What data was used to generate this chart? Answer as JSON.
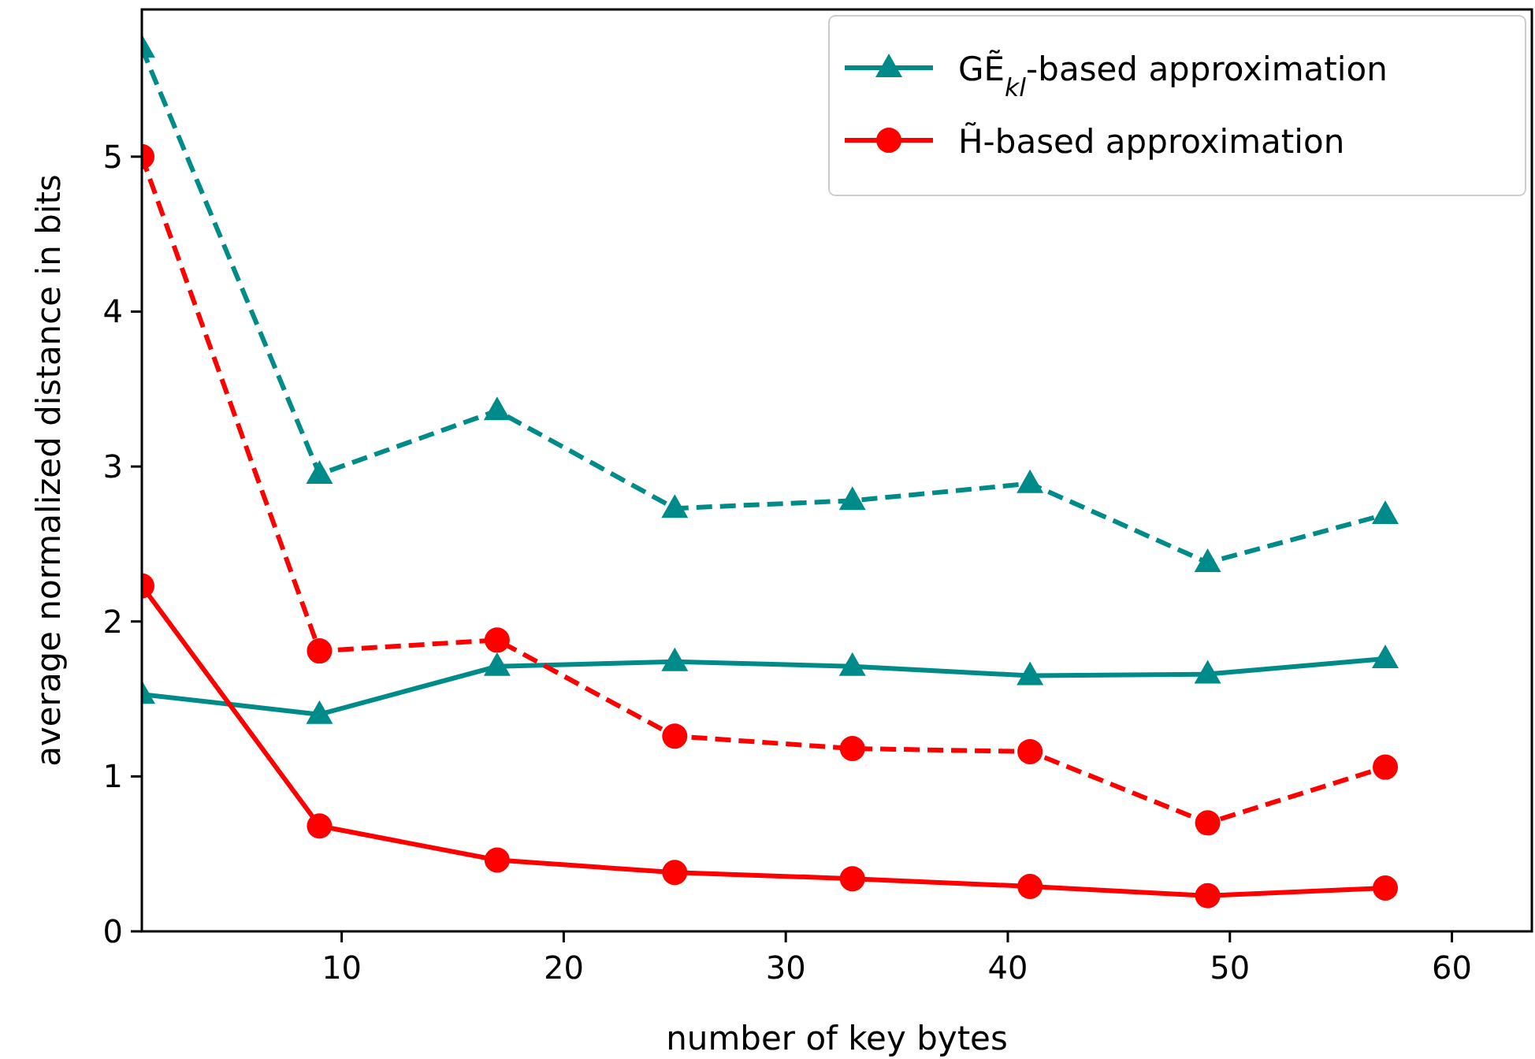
{
  "chart_data": {
    "type": "line",
    "xlabel": "number of key bytes",
    "ylabel": "average normalized distance in bits",
    "xlim": [
      1,
      63.6
    ],
    "xticks": [
      10,
      20,
      30,
      40,
      50,
      60
    ],
    "ylim": [
      0,
      5.95
    ],
    "yticks": [
      0,
      1,
      2,
      3,
      4,
      5
    ],
    "grid": false,
    "legend": "top right",
    "x": [
      1,
      9,
      17,
      25,
      33,
      41,
      49,
      57
    ],
    "series": [
      {
        "name": "GẼ$_{kl}$-based approximation",
        "color": "#008b8b",
        "marker": "triangle",
        "line_style": "solid",
        "values": [
          1.53,
          1.4,
          1.71,
          1.74,
          1.71,
          1.65,
          1.66,
          1.76
        ]
      },
      {
        "name": "H̃-based approximation",
        "color": "#ff0000",
        "marker": "circle",
        "line_style": "solid",
        "values": [
          2.23,
          0.68,
          0.46,
          0.38,
          0.34,
          0.29,
          0.23,
          0.28
        ]
      },
      {
        "color": "#008b8b",
        "marker": "triangle",
        "line_style": "dashed",
        "values": [
          5.7,
          2.95,
          3.36,
          2.73,
          2.78,
          2.89,
          2.38,
          2.69
        ]
      },
      {
        "color": "#ff0000",
        "marker": "circle",
        "line_style": "dashed",
        "values": [
          5.0,
          1.81,
          1.88,
          1.26,
          1.18,
          1.16,
          0.7,
          1.06
        ]
      }
    ]
  }
}
